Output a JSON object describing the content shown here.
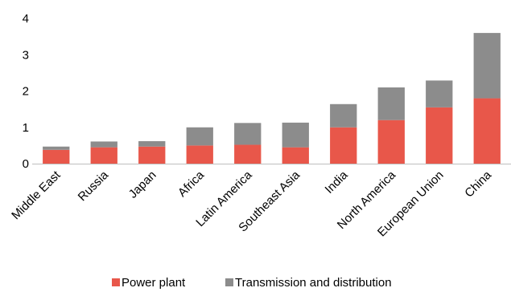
{
  "chart_data": {
    "type": "bar",
    "stacked": true,
    "categories": [
      "Middle East",
      "Russia",
      "Japan",
      "Africa",
      "Latin America",
      "Southeast Asia",
      "India",
      "North America",
      "European Union",
      "China"
    ],
    "series": [
      {
        "name": "Power plant",
        "color": "#e8574a",
        "values": [
          0.38,
          0.45,
          0.47,
          0.5,
          0.52,
          0.45,
          1.0,
          1.2,
          1.55,
          1.8
        ]
      },
      {
        "name": "Transmission and distribution",
        "color": "#8c8c8c",
        "values": [
          0.09,
          0.16,
          0.15,
          0.5,
          0.6,
          0.68,
          0.64,
          0.9,
          0.74,
          1.8
        ]
      }
    ],
    "ylim": [
      0,
      4
    ],
    "yticks": [
      "0",
      "1",
      "2",
      "3",
      "4"
    ],
    "grid": false,
    "legend": "bottom-center"
  }
}
